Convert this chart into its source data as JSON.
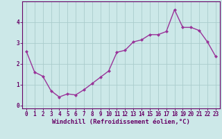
{
  "x": [
    0,
    1,
    2,
    3,
    4,
    5,
    6,
    7,
    8,
    9,
    10,
    11,
    12,
    13,
    14,
    15,
    16,
    17,
    18,
    19,
    20,
    21,
    22,
    23
  ],
  "y": [
    2.6,
    1.6,
    1.4,
    0.7,
    0.4,
    0.55,
    0.5,
    0.75,
    1.05,
    1.35,
    1.65,
    2.55,
    2.65,
    3.05,
    3.15,
    3.4,
    3.4,
    3.55,
    4.6,
    3.75,
    3.75,
    3.6,
    3.05,
    2.35
  ],
  "line_color": "#993399",
  "marker": "D",
  "marker_size": 2.0,
  "linewidth": 1.0,
  "xlabel": "Windchill (Refroidissement éolien,°C)",
  "xlabel_fontsize": 6.5,
  "ylim": [
    -0.15,
    5.0
  ],
  "xlim": [
    -0.5,
    23.5
  ],
  "yticks": [
    0,
    1,
    2,
    3,
    4
  ],
  "xticks": [
    0,
    1,
    2,
    3,
    4,
    5,
    6,
    7,
    8,
    9,
    10,
    11,
    12,
    13,
    14,
    15,
    16,
    17,
    18,
    19,
    20,
    21,
    22,
    23
  ],
  "bg_color": "#cce8e8",
  "grid_color": "#aacccc",
  "tick_fontsize": 5.5,
  "spine_color": "#660066",
  "xlabel_color": "#660066"
}
